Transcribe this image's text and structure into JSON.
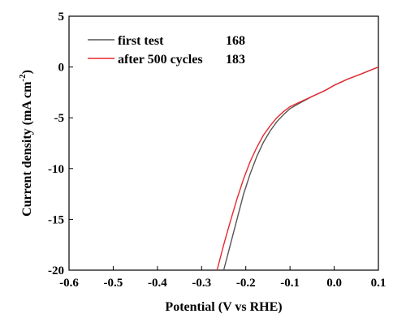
{
  "chart_data": {
    "type": "line",
    "xlabel": "Potential (V vs RHE)",
    "ylabel_main": "Current density (mA cm",
    "ylabel_sup": "-2",
    "ylabel_end": ")",
    "xlim": [
      -0.6,
      0.1
    ],
    "ylim": [
      -20,
      5
    ],
    "x_ticks": [
      -0.6,
      -0.5,
      -0.4,
      -0.3,
      -0.2,
      -0.1,
      0.0,
      0.1
    ],
    "x_tick_labels": [
      "-0.6",
      "-0.5",
      "-0.4",
      "-0.3",
      "-0.2",
      "-0.1",
      "0.0",
      "0.1"
    ],
    "y_ticks": [
      -20,
      -15,
      -10,
      -5,
      0,
      5
    ],
    "y_tick_labels": [
      "-20",
      "-15",
      "-10",
      "-5",
      "0",
      "5"
    ],
    "grid": false,
    "legend_position": "top-left",
    "series": [
      {
        "name": "first test",
        "value_label": "168",
        "color": "#555555",
        "x": [
          -0.25,
          -0.235,
          -0.22,
          -0.205,
          -0.19,
          -0.175,
          -0.16,
          -0.145,
          -0.13,
          -0.115,
          -0.1,
          -0.08,
          -0.05,
          -0.02,
          0.0,
          0.03,
          0.06,
          0.1
        ],
        "y": [
          -20.0,
          -17.5,
          -15.0,
          -12.5,
          -10.5,
          -8.8,
          -7.4,
          -6.3,
          -5.4,
          -4.7,
          -4.1,
          -3.6,
          -2.9,
          -2.3,
          -1.8,
          -1.2,
          -0.7,
          0.0
        ]
      },
      {
        "name": "after 500 cycles",
        "value_label": "183",
        "color": "#e8282d",
        "x": [
          -0.265,
          -0.25,
          -0.235,
          -0.22,
          -0.205,
          -0.19,
          -0.175,
          -0.16,
          -0.145,
          -0.13,
          -0.115,
          -0.1,
          -0.08,
          -0.05,
          -0.02,
          0.0,
          0.03,
          0.06,
          0.1
        ],
        "y": [
          -20.0,
          -17.5,
          -15.2,
          -13.0,
          -11.0,
          -9.3,
          -7.9,
          -6.7,
          -5.8,
          -5.0,
          -4.4,
          -3.9,
          -3.5,
          -2.9,
          -2.3,
          -1.8,
          -1.2,
          -0.7,
          0.0
        ]
      }
    ]
  }
}
